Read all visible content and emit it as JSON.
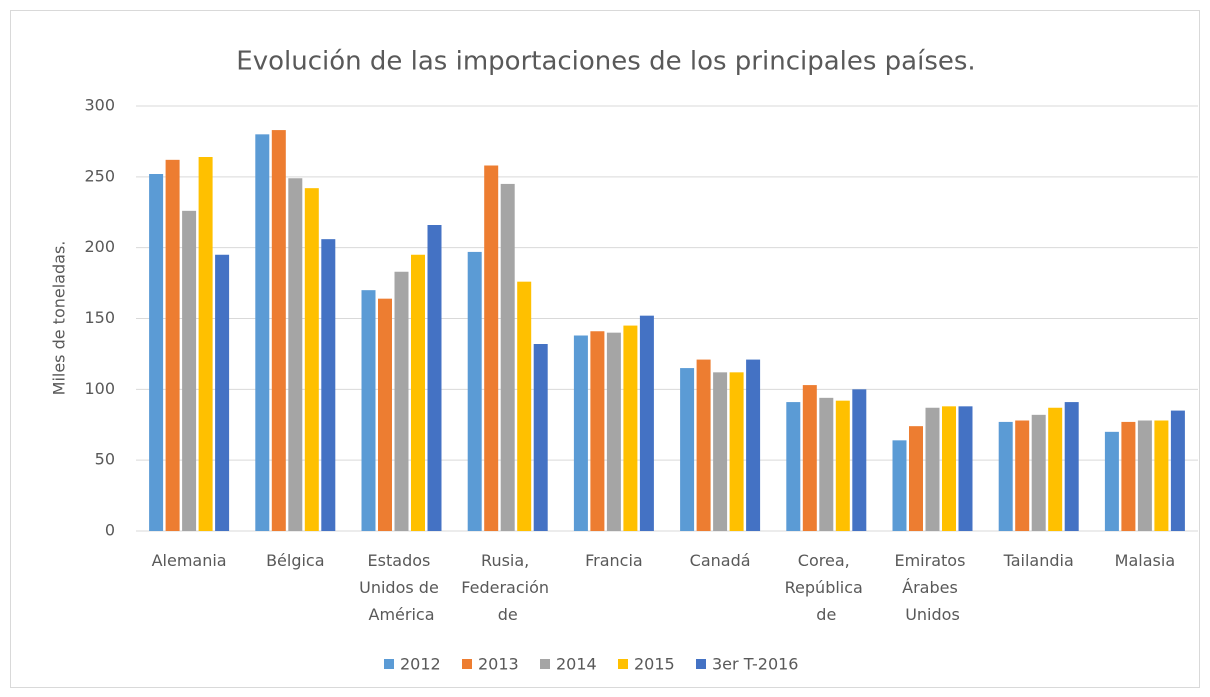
{
  "chart_data": {
    "type": "bar",
    "title": "Evolución de las importaciones de los principales países.",
    "y_label": "Miles de toneladas.",
    "categories": [
      "Alemania",
      "Bélgica",
      "Estados Unidos de América",
      "Rusia, Federación de",
      "Francia",
      "Canadá",
      "Corea, República de",
      "Emiratos Árabes Unidos",
      "Tailandia",
      "Malasia"
    ],
    "series": [
      {
        "name": "2012",
        "color": "#5b9bd5",
        "values": [
          252,
          280,
          170,
          197,
          138,
          115,
          91,
          64,
          77,
          70
        ]
      },
      {
        "name": "2013",
        "color": "#ed7d31",
        "values": [
          262,
          283,
          164,
          258,
          141,
          121,
          103,
          74,
          78,
          77
        ]
      },
      {
        "name": "2014",
        "color": "#a5a5a5",
        "values": [
          226,
          249,
          183,
          245,
          140,
          112,
          94,
          87,
          82,
          78
        ]
      },
      {
        "name": "2015",
        "color": "#ffc000",
        "values": [
          264,
          242,
          195,
          176,
          145,
          112,
          92,
          88,
          87,
          78
        ]
      },
      {
        "name": "3er T-2016",
        "color": "#4472c4",
        "values": [
          195,
          206,
          216,
          132,
          152,
          121,
          100,
          88,
          91,
          85
        ]
      }
    ],
    "ylim": [
      0,
      300
    ],
    "yticks": [
      0,
      50,
      100,
      150,
      200,
      250,
      300
    ],
    "grid": true,
    "legend": "bottom"
  }
}
